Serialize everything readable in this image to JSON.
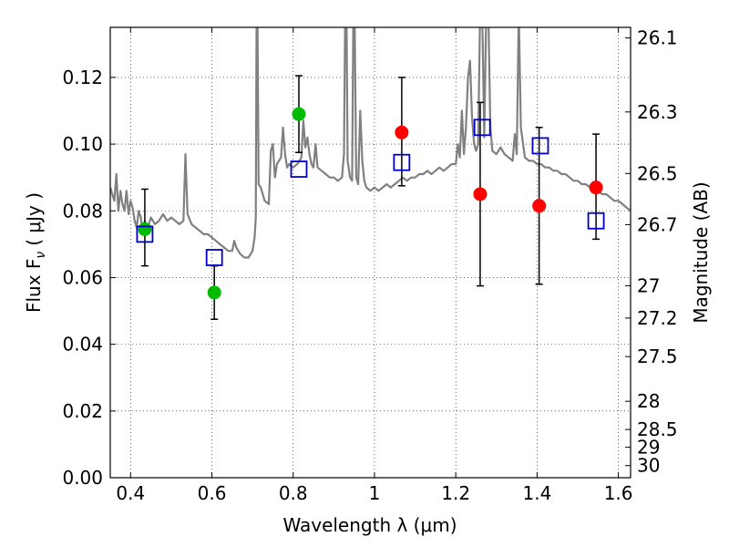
{
  "chart_data": {
    "type": "scatter",
    "xlabel": "Wavelength  λ (μm)",
    "ylabel": "Flux  F",
    "ylabel_subscript": "ν",
    "ylabel_unit": "( μJy )",
    "y2label": "Magnitude (AB)",
    "xlim": [
      0.35,
      1.63
    ],
    "ylim": [
      0.0,
      0.135
    ],
    "grid": true,
    "grid_style": "dotted",
    "x_ticks": [
      0.4,
      0.6,
      0.8,
      1.0,
      1.2,
      1.4,
      1.6
    ],
    "x_tick_labels": [
      "0.4",
      "0.6",
      "0.8",
      "1",
      "1.2",
      "1.4",
      "1.6"
    ],
    "y_ticks": [
      0.0,
      0.02,
      0.04,
      0.06,
      0.08,
      0.1,
      0.12
    ],
    "y_tick_labels": [
      "0.00",
      "0.02",
      "0.04",
      "0.06",
      "0.08",
      "0.10",
      "0.12"
    ],
    "y2_ticks": [
      {
        "mag": 26.1,
        "label": "26.1"
      },
      {
        "mag": 26.3,
        "label": "26.3"
      },
      {
        "mag": 26.5,
        "label": "26.5"
      },
      {
        "mag": 26.7,
        "label": "26.7"
      },
      {
        "mag": 27.0,
        "label": "27"
      },
      {
        "mag": 27.2,
        "label": "27.2"
      },
      {
        "mag": 27.5,
        "label": "27.5"
      },
      {
        "mag": 28.0,
        "label": "28"
      },
      {
        "mag": 28.5,
        "label": "28.5"
      },
      {
        "mag": 29.0,
        "label": "29"
      },
      {
        "mag": 30.0,
        "label": "30"
      }
    ],
    "series": [
      {
        "kind": "line",
        "color": "#808080",
        "points": [
          [
            0.35,
            0.087
          ],
          [
            0.355,
            0.085
          ],
          [
            0.36,
            0.083
          ],
          [
            0.365,
            0.091
          ],
          [
            0.37,
            0.08
          ],
          [
            0.375,
            0.086
          ],
          [
            0.38,
            0.082
          ],
          [
            0.385,
            0.08
          ],
          [
            0.39,
            0.086
          ],
          [
            0.395,
            0.079
          ],
          [
            0.4,
            0.083
          ],
          [
            0.405,
            0.081
          ],
          [
            0.41,
            0.077
          ],
          [
            0.415,
            0.075
          ],
          [
            0.42,
            0.08
          ],
          [
            0.425,
            0.078
          ],
          [
            0.43,
            0.074
          ],
          [
            0.435,
            0.077
          ],
          [
            0.44,
            0.075
          ],
          [
            0.445,
            0.076
          ],
          [
            0.45,
            0.078
          ],
          [
            0.46,
            0.076
          ],
          [
            0.47,
            0.077
          ],
          [
            0.48,
            0.079
          ],
          [
            0.49,
            0.077
          ],
          [
            0.5,
            0.078
          ],
          [
            0.51,
            0.077
          ],
          [
            0.52,
            0.076
          ],
          [
            0.53,
            0.077
          ],
          [
            0.535,
            0.097
          ],
          [
            0.54,
            0.079
          ],
          [
            0.55,
            0.076
          ],
          [
            0.56,
            0.075
          ],
          [
            0.57,
            0.074
          ],
          [
            0.58,
            0.073
          ],
          [
            0.59,
            0.073
          ],
          [
            0.6,
            0.072
          ],
          [
            0.61,
            0.071
          ],
          [
            0.62,
            0.07
          ],
          [
            0.63,
            0.069
          ],
          [
            0.64,
            0.068
          ],
          [
            0.65,
            0.068
          ],
          [
            0.655,
            0.071
          ],
          [
            0.66,
            0.069
          ],
          [
            0.67,
            0.067
          ],
          [
            0.68,
            0.066
          ],
          [
            0.69,
            0.066
          ],
          [
            0.7,
            0.068
          ],
          [
            0.705,
            0.072
          ],
          [
            0.708,
            0.078
          ],
          [
            0.71,
            0.14
          ],
          [
            0.712,
            0.14
          ],
          [
            0.715,
            0.088
          ],
          [
            0.72,
            0.087
          ],
          [
            0.725,
            0.085
          ],
          [
            0.73,
            0.083
          ],
          [
            0.74,
            0.082
          ],
          [
            0.745,
            0.098
          ],
          [
            0.75,
            0.1
          ],
          [
            0.755,
            0.09
          ],
          [
            0.76,
            0.094
          ],
          [
            0.77,
            0.096
          ],
          [
            0.775,
            0.105
          ],
          [
            0.78,
            0.097
          ],
          [
            0.785,
            0.093
          ],
          [
            0.79,
            0.094
          ],
          [
            0.8,
            0.093
          ],
          [
            0.81,
            0.094
          ],
          [
            0.815,
            0.095
          ],
          [
            0.82,
            0.096
          ],
          [
            0.825,
            0.107
          ],
          [
            0.83,
            0.099
          ],
          [
            0.835,
            0.102
          ],
          [
            0.84,
            0.097
          ],
          [
            0.845,
            0.094
          ],
          [
            0.85,
            0.093
          ],
          [
            0.855,
            0.1
          ],
          [
            0.86,
            0.093
          ],
          [
            0.87,
            0.092
          ],
          [
            0.88,
            0.091
          ],
          [
            0.89,
            0.09
          ],
          [
            0.9,
            0.09
          ],
          [
            0.91,
            0.089
          ],
          [
            0.92,
            0.09
          ],
          [
            0.925,
            0.097
          ],
          [
            0.928,
            0.14
          ],
          [
            0.931,
            0.14
          ],
          [
            0.934,
            0.095
          ],
          [
            0.94,
            0.09
          ],
          [
            0.945,
            0.089
          ],
          [
            0.948,
            0.14
          ],
          [
            0.951,
            0.14
          ],
          [
            0.955,
            0.09
          ],
          [
            0.96,
            0.088
          ],
          [
            0.965,
            0.11
          ],
          [
            0.97,
            0.095
          ],
          [
            0.975,
            0.089
          ],
          [
            0.98,
            0.087
          ],
          [
            0.99,
            0.086
          ],
          [
            1.0,
            0.087
          ],
          [
            1.01,
            0.086
          ],
          [
            1.02,
            0.087
          ],
          [
            1.03,
            0.088
          ],
          [
            1.04,
            0.087
          ],
          [
            1.05,
            0.088
          ],
          [
            1.06,
            0.089
          ],
          [
            1.07,
            0.09
          ],
          [
            1.08,
            0.089
          ],
          [
            1.09,
            0.09
          ],
          [
            1.1,
            0.09
          ],
          [
            1.11,
            0.091
          ],
          [
            1.12,
            0.091
          ],
          [
            1.13,
            0.092
          ],
          [
            1.14,
            0.091
          ],
          [
            1.15,
            0.092
          ],
          [
            1.16,
            0.093
          ],
          [
            1.17,
            0.092
          ],
          [
            1.18,
            0.093
          ],
          [
            1.19,
            0.094
          ],
          [
            1.2,
            0.094
          ],
          [
            1.205,
            0.1
          ],
          [
            1.21,
            0.096
          ],
          [
            1.215,
            0.11
          ],
          [
            1.22,
            0.097
          ],
          [
            1.225,
            0.105
          ],
          [
            1.23,
            0.12
          ],
          [
            1.235,
            0.125
          ],
          [
            1.24,
            0.108
          ],
          [
            1.245,
            0.1
          ],
          [
            1.25,
            0.098
          ],
          [
            1.255,
            0.1
          ],
          [
            1.26,
            0.14
          ],
          [
            1.265,
            0.14
          ],
          [
            1.27,
            0.102
          ],
          [
            1.275,
            0.14
          ],
          [
            1.28,
            0.14
          ],
          [
            1.285,
            0.105
          ],
          [
            1.29,
            0.098
          ],
          [
            1.3,
            0.097
          ],
          [
            1.31,
            0.099
          ],
          [
            1.32,
            0.097
          ],
          [
            1.33,
            0.096
          ],
          [
            1.34,
            0.095
          ],
          [
            1.345,
            0.103
          ],
          [
            1.35,
            0.097
          ],
          [
            1.355,
            0.14
          ],
          [
            1.36,
            0.105
          ],
          [
            1.37,
            0.096
          ],
          [
            1.38,
            0.095
          ],
          [
            1.39,
            0.095
          ],
          [
            1.4,
            0.094
          ],
          [
            1.41,
            0.094
          ],
          [
            1.42,
            0.093
          ],
          [
            1.43,
            0.093
          ],
          [
            1.44,
            0.092
          ],
          [
            1.45,
            0.092
          ],
          [
            1.46,
            0.091
          ],
          [
            1.47,
            0.091
          ],
          [
            1.48,
            0.09
          ],
          [
            1.49,
            0.089
          ],
          [
            1.5,
            0.089
          ],
          [
            1.51,
            0.088
          ],
          [
            1.52,
            0.088
          ],
          [
            1.53,
            0.087
          ],
          [
            1.54,
            0.087
          ],
          [
            1.55,
            0.086
          ],
          [
            1.56,
            0.085
          ],
          [
            1.57,
            0.085
          ],
          [
            1.58,
            0.084
          ],
          [
            1.59,
            0.083
          ],
          [
            1.6,
            0.083
          ],
          [
            1.61,
            0.082
          ],
          [
            1.62,
            0.081
          ],
          [
            1.63,
            0.08
          ]
        ]
      },
      {
        "kind": "markers",
        "marker": "circle",
        "color": "#00bb00",
        "points": [
          {
            "x": 0.435,
            "y": 0.0745,
            "yerr": [
              0.0635,
              0.0865
            ]
          },
          {
            "x": 0.606,
            "y": 0.0555,
            "yerr": [
              0.0475,
              0.0635
            ]
          },
          {
            "x": 0.814,
            "y": 0.109,
            "yerr": [
              0.0975,
              0.1205
            ]
          }
        ]
      },
      {
        "kind": "markers",
        "marker": "circle",
        "color": "#ff0000",
        "points": [
          {
            "x": 1.067,
            "y": 0.1035,
            "yerr": [
              0.0875,
              0.12
            ]
          },
          {
            "x": 1.26,
            "y": 0.085,
            "yerr": [
              0.0575,
              0.1125
            ]
          },
          {
            "x": 1.405,
            "y": 0.0815,
            "yerr": [
              0.058,
              0.105
            ]
          },
          {
            "x": 1.545,
            "y": 0.087,
            "yerr": [
              0.0715,
              0.103
            ]
          }
        ]
      },
      {
        "kind": "markers",
        "marker": "open-square",
        "color": "#0000cc",
        "points": [
          {
            "x": 0.435,
            "y": 0.073
          },
          {
            "x": 0.606,
            "y": 0.066
          },
          {
            "x": 0.814,
            "y": 0.0925
          },
          {
            "x": 1.067,
            "y": 0.0945
          },
          {
            "x": 1.265,
            "y": 0.105
          },
          {
            "x": 1.408,
            "y": 0.0995
          },
          {
            "x": 1.545,
            "y": 0.077
          }
        ]
      }
    ]
  }
}
